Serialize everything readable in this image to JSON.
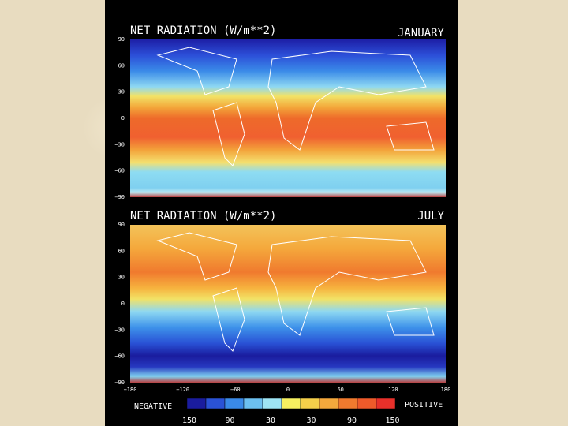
{
  "maps": [
    {
      "title": "NET RADIATION (W/m**2)",
      "month": "JANUARY",
      "lat_ticks": [
        "90",
        "60",
        "30",
        "0",
        "−30",
        "−60",
        "−90"
      ]
    },
    {
      "title": "NET RADIATION (W/m**2)",
      "month": "JULY",
      "lat_ticks": [
        "90",
        "60",
        "30",
        "0",
        "−30",
        "−60",
        "−90"
      ]
    }
  ],
  "lon_ticks": [
    "−180",
    "−120",
    "−60",
    "0",
    "60",
    "120",
    "180"
  ],
  "legend": {
    "negative_label": "NEGATIVE",
    "positive_label": "POSITIVE",
    "scale_labels": [
      "150",
      "90",
      "30",
      "30",
      "90",
      "150"
    ]
  }
}
